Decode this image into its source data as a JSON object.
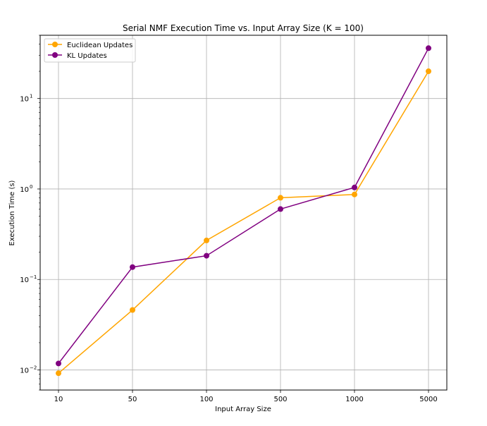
{
  "chart_data": {
    "type": "line",
    "title": "Serial NMF Execution Time vs. Input Array Size (K = 100)",
    "xlabel": "Input Array Size",
    "ylabel": "Execution Time (s)",
    "categories": [
      "10",
      "50",
      "100",
      "500",
      "1000",
      "5000"
    ],
    "y_scale": "log",
    "ylim": [
      0.006,
      50
    ],
    "y_ticks": [
      {
        "base": "10",
        "exp": "−2",
        "value": 0.01
      },
      {
        "base": "10",
        "exp": "−1",
        "value": 0.1
      },
      {
        "base": "10",
        "exp": "0",
        "value": 1
      },
      {
        "base": "10",
        "exp": "1",
        "value": 10
      }
    ],
    "grid": true,
    "legend_position": "top-left",
    "series": [
      {
        "name": "Euclidean Updates",
        "color": "#FFA500",
        "values": [
          0.0092,
          0.046,
          0.27,
          0.8,
          0.87,
          20
        ]
      },
      {
        "name": "KL Updates",
        "color": "#800080",
        "values": [
          0.0118,
          0.137,
          0.183,
          0.6,
          1.04,
          36
        ]
      }
    ]
  }
}
